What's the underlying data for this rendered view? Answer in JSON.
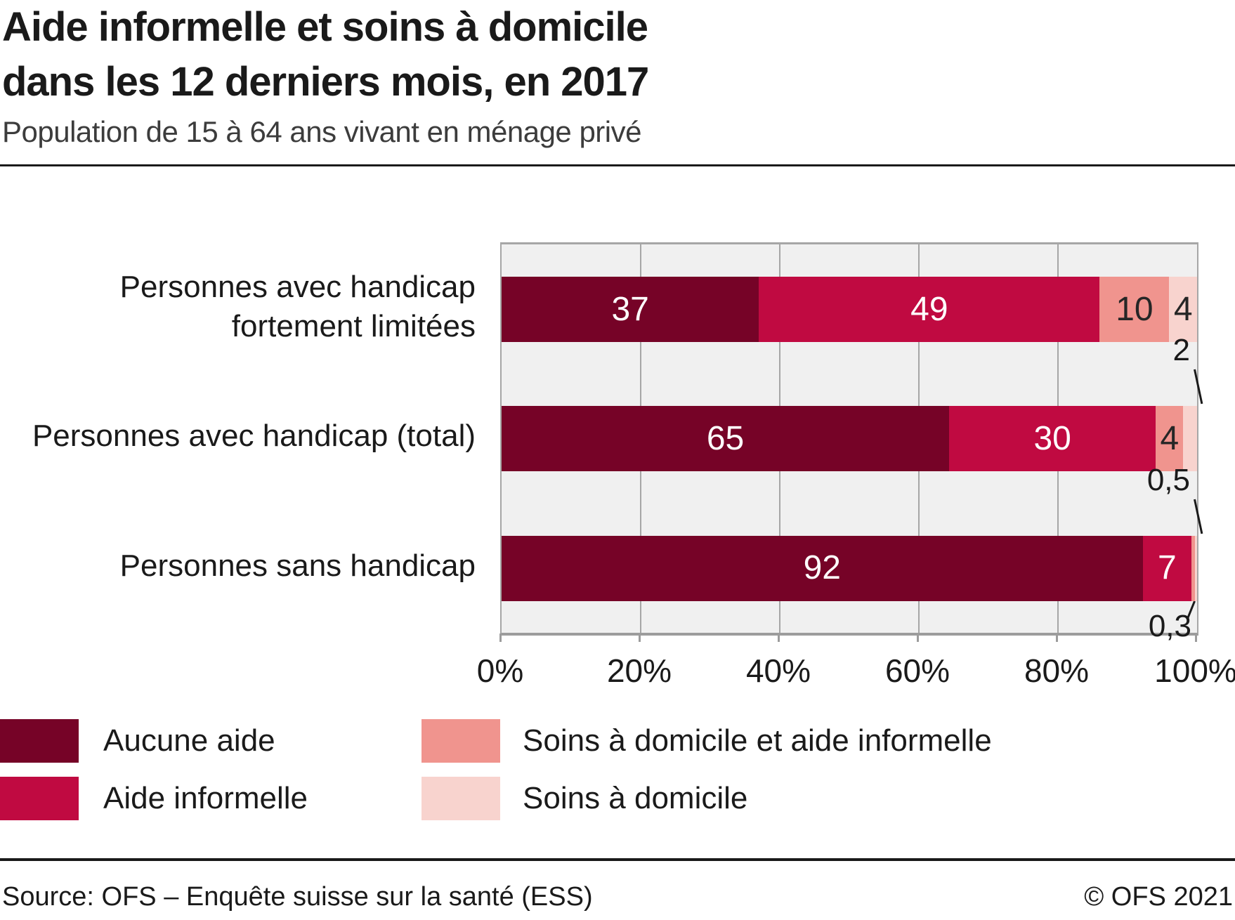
{
  "header": {
    "title_lines": [
      "Aide informelle et soins à domicile",
      "dans les 12 derniers mois, en 2017"
    ],
    "subtitle": "Population de 15 à 64 ans vivant en ménage privé"
  },
  "chart_data": {
    "type": "bar",
    "orientation": "horizontal",
    "stacked": true,
    "unit": "percent",
    "xlim": [
      0,
      100
    ],
    "x_ticks": [
      0,
      20,
      40,
      60,
      80,
      100
    ],
    "x_tick_labels": [
      "0%",
      "20%",
      "40%",
      "60%",
      "80%",
      "100%"
    ],
    "grid": true,
    "plot_background": "#F0F0F0",
    "categories": [
      {
        "label_lines": [
          "Personnes avec handicap",
          "fortement limitées"
        ]
      },
      {
        "label_lines": [
          "Personnes avec handicap (total)"
        ]
      },
      {
        "label_lines": [
          "Personnes sans handicap"
        ]
      }
    ],
    "series": [
      {
        "name": "Aucune aide",
        "color": "#760327",
        "value_label_color": "#FFFFFF",
        "values": [
          37,
          65,
          92
        ],
        "value_labels": [
          "37",
          "65",
          "92"
        ]
      },
      {
        "name": "Aide informelle",
        "color": "#C00A41",
        "value_label_color": "#FFFFFF",
        "values": [
          49,
          30,
          7
        ],
        "value_labels": [
          "49",
          "30",
          "7"
        ]
      },
      {
        "name": "Soins à domicile et aide informelle",
        "color": "#F0948E",
        "value_label_color": "#262626",
        "values": [
          10,
          4,
          0.5
        ],
        "value_labels": [
          "10",
          "4",
          "0,5"
        ]
      },
      {
        "name": "Soins à domicile",
        "color": "#F8D3CE",
        "value_label_color": "#262626",
        "values": [
          4,
          2,
          0.3
        ],
        "value_labels": [
          "4",
          "2",
          "0,3"
        ]
      }
    ],
    "label_placement": [
      [
        "inside",
        "inside",
        "inside",
        "inside"
      ],
      [
        "inside",
        "inside",
        "inside",
        "above"
      ],
      [
        "inside",
        "inside",
        "above",
        "below"
      ]
    ],
    "legend_position": "bottom"
  },
  "legend": {
    "items": [
      {
        "label": "Aucune aide",
        "color": "#760327"
      },
      {
        "label": "Aide informelle",
        "color": "#C00A41"
      },
      {
        "label": "Soins à domicile et aide informelle",
        "color": "#F0948E"
      },
      {
        "label": "Soins à domicile",
        "color": "#F8D3CE"
      }
    ]
  },
  "footer": {
    "source": "Source: OFS – Enquête suisse sur la santé (ESS)",
    "copyright": "© OFS 2021"
  },
  "colors": {
    "grid": "#A6A6A6",
    "axis": "#9C9C9C",
    "outside_label_text": "#1A1A1A",
    "subtitle_text": "#3C3C3C",
    "rule": "#1A1A1A"
  }
}
